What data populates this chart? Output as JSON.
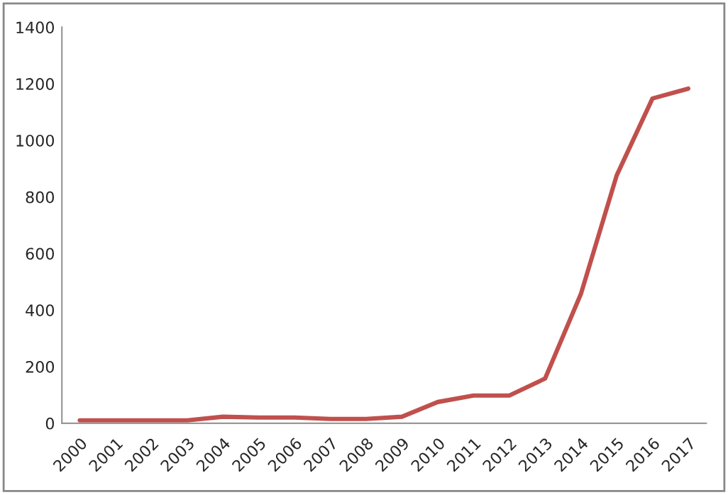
{
  "chart_data": {
    "type": "line",
    "categories": [
      "2000",
      "2001",
      "2002",
      "2003",
      "2004",
      "2005",
      "2006",
      "2007",
      "2008",
      "2009",
      "2010",
      "2011",
      "2012",
      "2013",
      "2014",
      "2015",
      "2016",
      "2017"
    ],
    "series": [
      {
        "color": "#c0504d",
        "values": [
          10,
          10,
          10,
          10,
          23,
          20,
          20,
          15,
          15,
          23,
          75,
          98,
          98,
          158,
          457,
          876,
          1148,
          1183
        ]
      }
    ],
    "ylim": [
      0,
      1400
    ],
    "yticks": [
      0,
      200,
      400,
      600,
      800,
      1000,
      1200,
      1400
    ],
    "grid": false,
    "marker": "none",
    "line_style": "solid"
  }
}
